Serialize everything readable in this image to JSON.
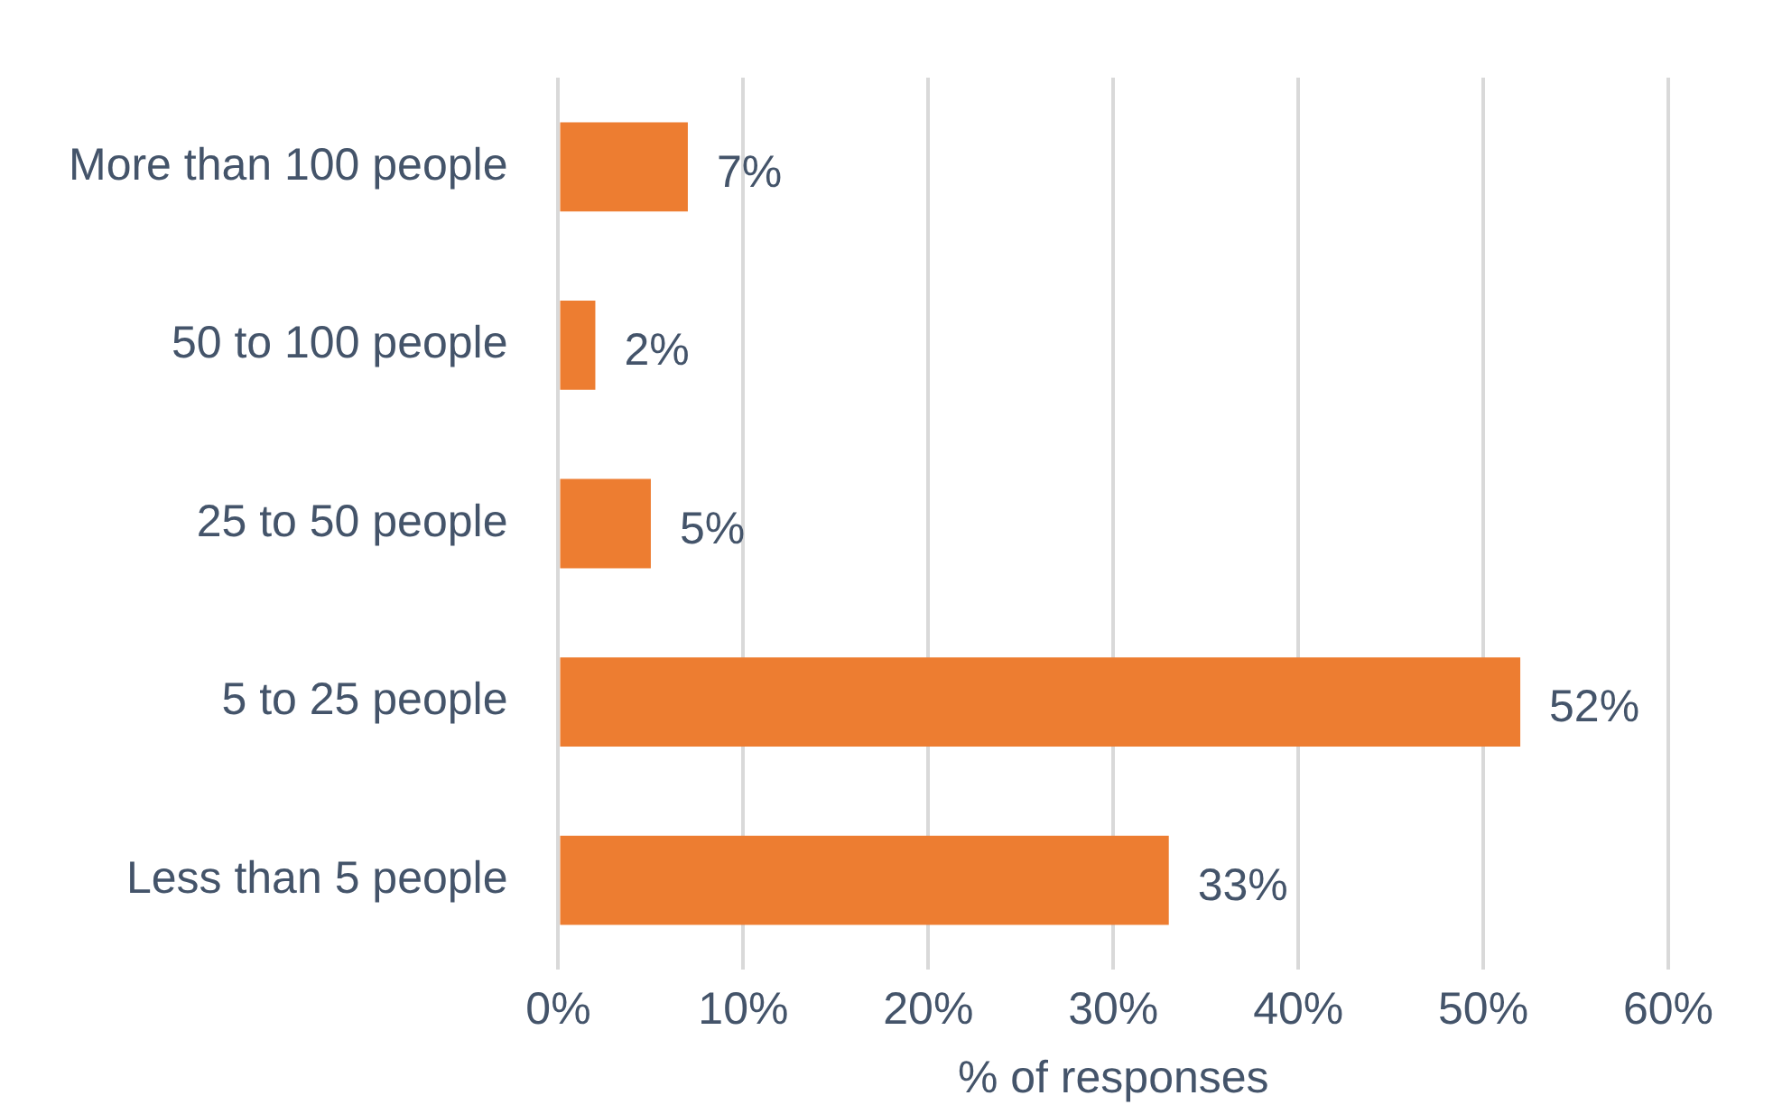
{
  "chart_data": {
    "type": "bar",
    "orientation": "horizontal",
    "xlabel": "% of responses",
    "categories": [
      "More than 100 people",
      "50 to 100 people",
      "25 to 50 people",
      "5 to 25 people",
      "Less than 5 people"
    ],
    "values": [
      7,
      2,
      5,
      52,
      33
    ],
    "color": "#ed7d31",
    "value_labels": [
      "7%",
      "2%",
      "5%",
      "52%",
      "33%"
    ],
    "xlim": [
      0,
      60
    ],
    "xticks": [
      {
        "value": 0,
        "label": "0%"
      },
      {
        "value": 10,
        "label": "10%"
      },
      {
        "value": 20,
        "label": "20%"
      },
      {
        "value": 30,
        "label": "30%"
      },
      {
        "value": 40,
        "label": "40%"
      },
      {
        "value": 50,
        "label": "50%"
      },
      {
        "value": 60,
        "label": "60%"
      }
    ],
    "grid": "x",
    "legend": false
  }
}
